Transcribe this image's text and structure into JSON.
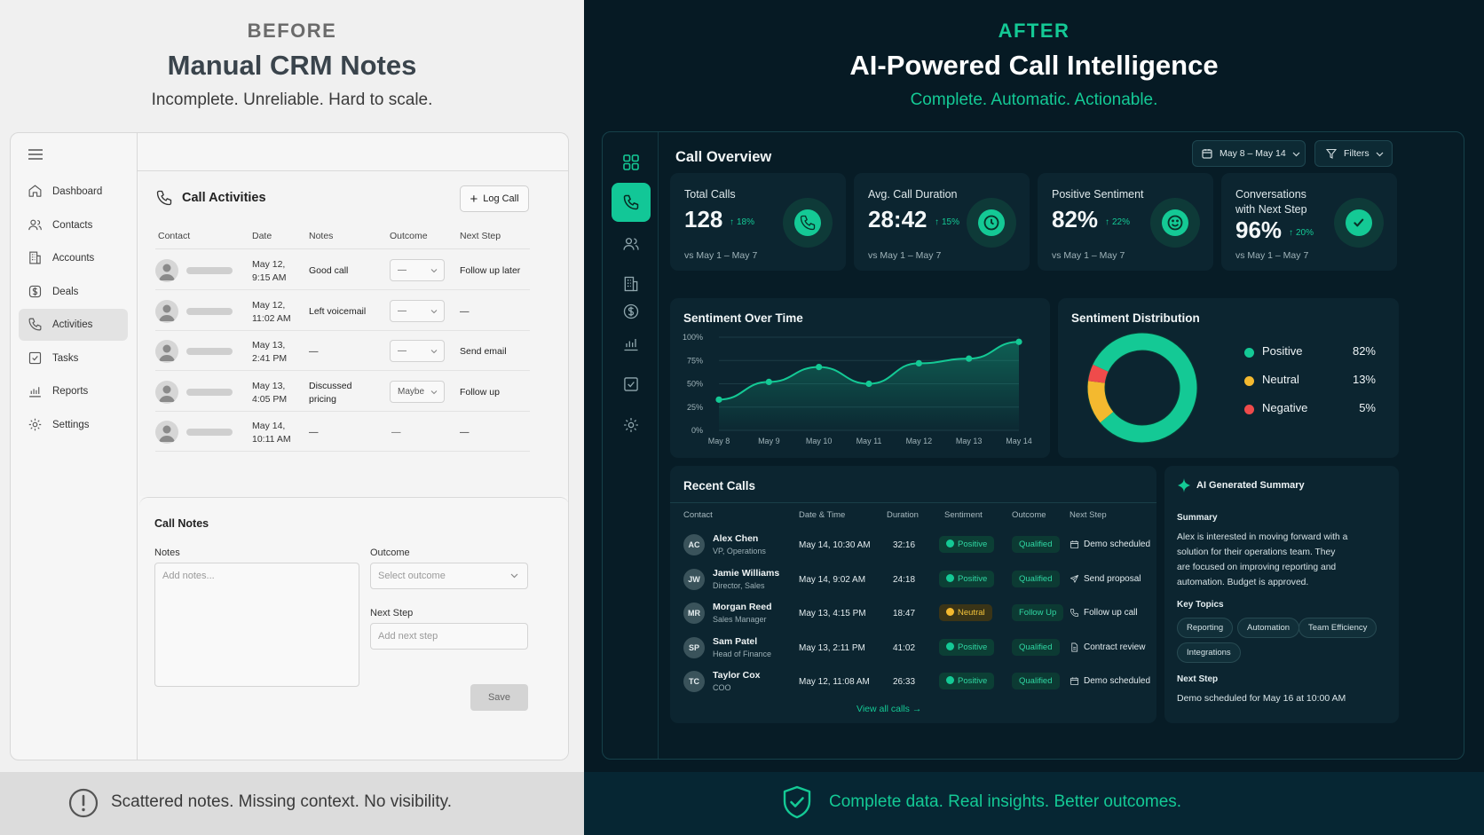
{
  "before": {
    "eyebrow": "BEFORE",
    "title": "Manual CRM Notes",
    "subtitle": "Incomplete. Unreliable. Hard to scale.",
    "nav": [
      {
        "label": "Dashboard",
        "icon": "home-icon"
      },
      {
        "label": "Contacts",
        "icon": "users-icon"
      },
      {
        "label": "Accounts",
        "icon": "building-icon"
      },
      {
        "label": "Deals",
        "icon": "dollar-icon"
      },
      {
        "label": "Activities",
        "icon": "phone-icon",
        "active": true
      },
      {
        "label": "Tasks",
        "icon": "checkbox-icon"
      },
      {
        "label": "Reports",
        "icon": "bar-chart-icon"
      },
      {
        "label": "Settings",
        "icon": "gear-icon"
      }
    ],
    "activities": {
      "title": "Call Activities",
      "log_button": "Log Call",
      "columns": [
        "Contact",
        "Date",
        "Notes",
        "Outcome",
        "Next Step"
      ],
      "rows": [
        {
          "date1": "May 12,",
          "date2": "9:15 AM",
          "notes1": "Good call",
          "notes2": "",
          "outcome": "—",
          "next": "Follow up later"
        },
        {
          "date1": "May 12,",
          "date2": "11:02 AM",
          "notes1": "Left voicemail",
          "notes2": "",
          "outcome": "—",
          "next": "—"
        },
        {
          "date1": "May 13,",
          "date2": "2:41 PM",
          "notes1": "—",
          "notes2": "",
          "outcome": "—",
          "next": "Send email"
        },
        {
          "date1": "May 13,",
          "date2": "4:05 PM",
          "notes1": "Discussed",
          "notes2": "pricing",
          "outcome": "Maybe",
          "next": "Follow up"
        },
        {
          "date1": "May 14,",
          "date2": "10:11 AM",
          "notes1": "—",
          "notes2": "",
          "outcome": "—",
          "next": "—"
        }
      ]
    },
    "call_notes": {
      "title": "Call Notes",
      "notes_label": "Notes",
      "notes_placeholder": "Add notes...",
      "outcome_label": "Outcome",
      "outcome_placeholder": "Select outcome",
      "next_label": "Next Step",
      "next_placeholder": "Add next step",
      "save": "Save"
    },
    "footer": "Scattered notes. Missing context. No visibility."
  },
  "after": {
    "eyebrow": "AFTER",
    "title": "AI-Powered Call Intelligence",
    "subtitle": "Complete. Automatic. Actionable.",
    "overview_title": "Call Overview",
    "date_range": "May 8 – May 14",
    "filters": "Filters",
    "kpis": [
      {
        "label": "Total Calls",
        "label2": "",
        "value": "128",
        "delta": "18%",
        "compare": "vs May 1 – May 7",
        "icon": "phone-icon"
      },
      {
        "label": "Avg. Call Duration",
        "label2": "",
        "value": "28:42",
        "delta": "15%",
        "compare": "vs May 1 – May 7",
        "icon": "clock-icon"
      },
      {
        "label": "Positive Sentiment",
        "label2": "",
        "value": "82%",
        "delta": "22%",
        "compare": "vs May 1 – May 7",
        "icon": "smile-icon"
      },
      {
        "label": "Conversations",
        "label2": "with Next Step",
        "value": "96%",
        "delta": "20%",
        "compare": "vs May 1 – May 7",
        "icon": "check-circle-icon"
      }
    ],
    "sentiment_title": "Sentiment Over Time",
    "distribution_title": "Sentiment Distribution",
    "distribution": [
      {
        "name": "Positive",
        "pct": "82%",
        "value": 82,
        "color": "#14c995"
      },
      {
        "name": "Neutral",
        "pct": "13%",
        "value": 13,
        "color": "#f4b92f"
      },
      {
        "name": "Negative",
        "pct": "5%",
        "value": 5,
        "color": "#ef4b4b"
      }
    ],
    "recent": {
      "title": "Recent Calls",
      "columns": [
        "Contact",
        "Date & Time",
        "Duration",
        "Sentiment",
        "Outcome",
        "Next Step"
      ],
      "rows": [
        {
          "initials": "AC",
          "name": "Alex Chen",
          "role": "VP, Operations",
          "datetime": "May 14, 10:30 AM",
          "duration": "32:16",
          "sentiment": "Positive",
          "outcome": "Qualified",
          "next": "Demo scheduled",
          "next_icon": "calendar-icon"
        },
        {
          "initials": "JW",
          "name": "Jamie Williams",
          "role": "Director, Sales",
          "datetime": "May 14, 9:02 AM",
          "duration": "24:18",
          "sentiment": "Positive",
          "outcome": "Qualified",
          "next": "Send proposal",
          "next_icon": "send-icon"
        },
        {
          "initials": "MR",
          "name": "Morgan Reed",
          "role": "Sales Manager",
          "datetime": "May 13, 4:15 PM",
          "duration": "18:47",
          "sentiment": "Neutral",
          "outcome": "Follow Up",
          "next": "Follow up call",
          "next_icon": "phone-icon"
        },
        {
          "initials": "SP",
          "name": "Sam Patel",
          "role": "Head of Finance",
          "datetime": "May 13, 2:11 PM",
          "duration": "41:02",
          "sentiment": "Positive",
          "outcome": "Qualified",
          "next": "Contract review",
          "next_icon": "document-icon"
        },
        {
          "initials": "TC",
          "name": "Taylor Cox",
          "role": "COO",
          "datetime": "May 12, 11:08 AM",
          "duration": "26:33",
          "sentiment": "Positive",
          "outcome": "Qualified",
          "next": "Demo scheduled",
          "next_icon": "calendar-icon"
        }
      ],
      "view_all": "View all calls →"
    },
    "summary": {
      "title": "AI Generated Summary",
      "summary_label": "Summary",
      "summary_lines": [
        "Alex is interested in moving forward with a",
        "solution for their operations team. They",
        "are focused on improving reporting and",
        "automation. Budget is approved."
      ],
      "topics_label": "Key Topics",
      "topics": [
        "Reporting",
        "Automation",
        "Team Efficiency",
        "Integrations"
      ],
      "next_label": "Next Step",
      "next_text": "Demo scheduled for May 16 at 10:00 AM"
    },
    "footer": "Complete data. Real insights. Better outcomes."
  },
  "chart_data": {
    "type": "line",
    "title": "Sentiment Over Time",
    "x": [
      "May 8",
      "May 9",
      "May 10",
      "May 11",
      "May 12",
      "May 13",
      "May 14"
    ],
    "series": [
      {
        "values": [
          33,
          52,
          68,
          50,
          72,
          77,
          95
        ]
      }
    ],
    "yticks": [
      "100%",
      "75%",
      "50%",
      "25%",
      "0%"
    ],
    "ylim": [
      0,
      100
    ],
    "color": "#14c995"
  }
}
